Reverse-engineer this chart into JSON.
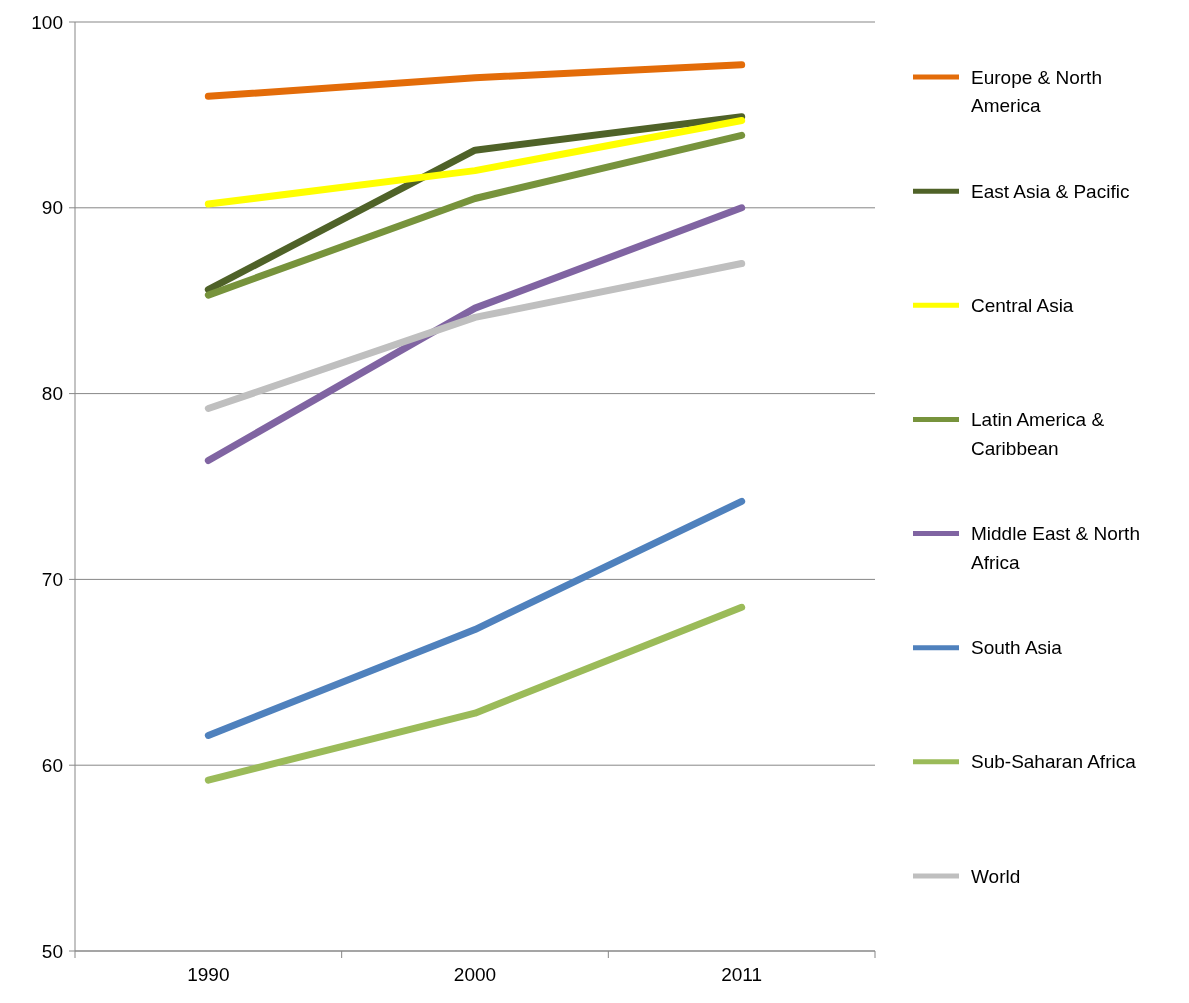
{
  "chart_data": {
    "type": "line",
    "categories": [
      "1990",
      "2000",
      "2011"
    ],
    "ylim": [
      50,
      100
    ],
    "yticks": [
      50,
      60,
      70,
      80,
      90,
      100
    ],
    "grid": "y",
    "legend": "right",
    "series": [
      {
        "name": "Europe & North America",
        "color": "#e36c09",
        "values": [
          96.0,
          97.0,
          97.7
        ]
      },
      {
        "name": "East Asia & Pacific",
        "color": "#4f6228",
        "values": [
          85.6,
          93.1,
          94.9
        ]
      },
      {
        "name": "Central Asia",
        "color": "#ffff00",
        "values": [
          90.2,
          92.0,
          94.7
        ]
      },
      {
        "name": "Latin America & Caribbean",
        "color": "#77933c",
        "values": [
          85.3,
          90.5,
          93.9
        ]
      },
      {
        "name": "Middle East & North Africa",
        "color": "#8064a2",
        "values": [
          76.4,
          84.6,
          90.0
        ]
      },
      {
        "name": "South Asia",
        "color": "#4f81bd",
        "values": [
          61.6,
          67.3,
          74.2
        ]
      },
      {
        "name": "Sub-Saharan Africa",
        "color": "#9bbb59",
        "values": [
          59.2,
          62.8,
          68.5
        ]
      },
      {
        "name": "World",
        "color": "#bfbfbf",
        "values": [
          79.2,
          84.1,
          87.0
        ]
      }
    ]
  }
}
